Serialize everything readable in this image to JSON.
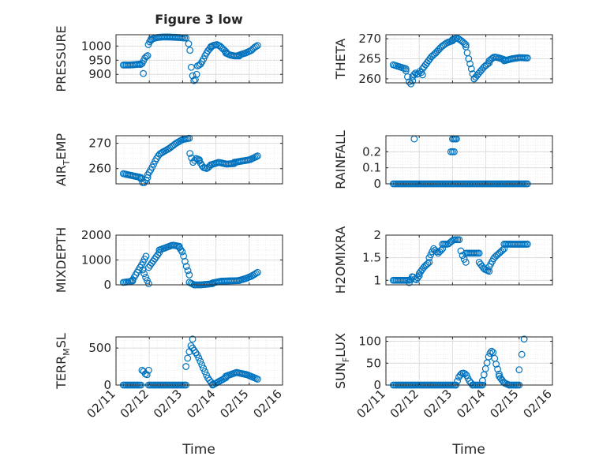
{
  "figure": {
    "title": "Figure 3 low",
    "xlabel": "Time",
    "marker_color": "#0072BD"
  },
  "chart_data": [
    {
      "type": "scatter",
      "ylabel": "PRESSURE",
      "ylabel_parts": [
        {
          "text": "PRESSURE"
        }
      ],
      "xlim": [
        "02/11",
        "02/16"
      ],
      "ylim": [
        870,
        1040
      ],
      "yticks": [
        900,
        950,
        1000
      ],
      "ytick_labels": [
        "900",
        "950",
        "1000"
      ],
      "xtick_labels": [
        "02/11",
        "02/12",
        "02/13",
        "02/14",
        "02/15",
        "02/16"
      ],
      "show_xtick_labels": false,
      "grid": true,
      "segments": [
        {
          "from": 11.22,
          "to": 11.7,
          "values": [
            933,
            933,
            934,
            936
          ]
        },
        {
          "from": 11.7,
          "to": 11.95,
          "values": [
            936,
            935,
            940,
            955,
            962,
            966
          ]
        },
        {
          "from": 11.82,
          "to": 11.82,
          "values": [
            903
          ]
        },
        {
          "from": 11.97,
          "to": 12.05,
          "values": [
            1005,
            1015,
            1020
          ]
        },
        {
          "from": 12.05,
          "to": 13.1,
          "values": [
            1024,
            1030,
            1032,
            1032,
            1031,
            1030,
            1028
          ]
        },
        {
          "from": 13.18,
          "to": 13.22,
          "values": [
            1008,
            985
          ]
        },
        {
          "from": 13.26,
          "to": 13.42,
          "values": [
            925,
            895,
            878,
            882,
            900
          ]
        },
        {
          "from": 13.45,
          "to": 13.85,
          "values": [
            930,
            935,
            950,
            970,
            985,
            995
          ]
        },
        {
          "from": 13.85,
          "to": 14.3,
          "values": [
            998,
            1003,
            1005,
            1000,
            990,
            980
          ]
        },
        {
          "from": 14.3,
          "to": 14.7,
          "values": [
            975,
            968,
            965,
            965
          ]
        },
        {
          "from": 14.7,
          "to": 15.25,
          "values": [
            968,
            972,
            975,
            980,
            985,
            995,
            1002
          ]
        }
      ]
    },
    {
      "type": "scatter",
      "ylabel": "THETA",
      "ylabel_parts": [
        {
          "text": "THETA"
        }
      ],
      "xlim": [
        "02/11",
        "02/16"
      ],
      "ylim": [
        259,
        271
      ],
      "yticks": [
        260,
        265,
        270
      ],
      "ytick_labels": [
        "260",
        "265",
        "270"
      ],
      "xtick_labels": [
        "02/11",
        "02/12",
        "02/13",
        "02/14",
        "02/15",
        "02/16"
      ],
      "show_xtick_labels": false,
      "grid": true,
      "segments": [
        {
          "from": 11.22,
          "to": 11.6,
          "values": [
            263.5,
            263.0,
            262.5
          ]
        },
        {
          "from": 11.6,
          "to": 11.8,
          "values": [
            262.0,
            260.0,
            258.5,
            259.5
          ]
        },
        {
          "from": 11.8,
          "to": 12.1,
          "values": [
            260.5,
            261.5,
            261.0,
            262.0,
            261.0
          ]
        },
        {
          "from": 12.1,
          "to": 12.5,
          "values": [
            262.5,
            264.0,
            265.5,
            266.5
          ]
        },
        {
          "from": 12.5,
          "to": 13.0,
          "values": [
            266.5,
            268.0,
            269.0,
            269.5
          ]
        },
        {
          "from": 13.0,
          "to": 13.4,
          "values": [
            269.8,
            270.2,
            269.5,
            268.5
          ]
        },
        {
          "from": 13.4,
          "to": 13.65,
          "values": [
            268.0,
            265.0,
            262.5,
            260.0
          ]
        },
        {
          "from": 13.65,
          "to": 14.1,
          "values": [
            260.0,
            261.5,
            263.0,
            264.0
          ]
        },
        {
          "from": 14.1,
          "to": 14.55,
          "values": [
            264.5,
            265.5,
            265.2,
            264.8
          ]
        },
        {
          "from": 14.55,
          "to": 15.25,
          "values": [
            264.5,
            265.0,
            265.3,
            265.2
          ]
        }
      ]
    },
    {
      "type": "scatter",
      "ylabel": "AIR_TEMP",
      "ylabel_parts": [
        {
          "text": "AIR"
        },
        {
          "text": "T",
          "sub": true
        },
        {
          "text": "EMP"
        }
      ],
      "xlim": [
        "02/11",
        "02/16"
      ],
      "ylim": [
        254,
        273
      ],
      "yticks": [
        260,
        270
      ],
      "ytick_labels": [
        "260",
        "270"
      ],
      "xtick_labels": [
        "02/11",
        "02/12",
        "02/13",
        "02/14",
        "02/15",
        "02/16"
      ],
      "show_xtick_labels": false,
      "grid": true,
      "segments": [
        {
          "from": 11.22,
          "to": 11.75,
          "values": [
            258.0,
            257.5,
            257.0,
            256.5
          ]
        },
        {
          "from": 11.75,
          "to": 11.95,
          "values": [
            256.0,
            254.5,
            254.5,
            255.5,
            256.5
          ]
        },
        {
          "from": 11.95,
          "to": 12.4,
          "values": [
            257.5,
            260.0,
            263.0,
            265.5,
            266.5
          ]
        },
        {
          "from": 12.4,
          "to": 13.2,
          "values": [
            266.5,
            268.0,
            270.0,
            271.5,
            272.0
          ]
        },
        {
          "from": 13.22,
          "to": 13.5,
          "values": [
            266.0,
            262.5,
            264.0,
            263.5
          ]
        },
        {
          "from": 13.5,
          "to": 13.85,
          "values": [
            263.0,
            260.5,
            260.0,
            261.5
          ]
        },
        {
          "from": 13.85,
          "to": 14.55,
          "values": [
            261.5,
            262.5,
            261.8,
            262.0
          ]
        },
        {
          "from": 14.55,
          "to": 15.25,
          "values": [
            262.5,
            263.0,
            263.5,
            265.0
          ]
        }
      ]
    },
    {
      "type": "scatter",
      "ylabel": "RAINFALL",
      "ylabel_parts": [
        {
          "text": "RAINFALL"
        }
      ],
      "xlim": [
        "02/11",
        "02/16"
      ],
      "ylim": [
        0,
        0.3
      ],
      "yticks": [
        0,
        0.1,
        0.2
      ],
      "ytick_labels": [
        "0",
        "0.1",
        "0.2"
      ],
      "xtick_labels": [
        "02/11",
        "02/12",
        "02/13",
        "02/14",
        "02/15",
        "02/16"
      ],
      "show_xtick_labels": false,
      "grid": true,
      "segments": [
        {
          "from": 11.22,
          "to": 15.25,
          "values": [
            0,
            0
          ]
        },
        {
          "from": 11.85,
          "to": 11.85,
          "values": [
            0.28
          ]
        },
        {
          "from": 12.95,
          "to": 13.05,
          "values": [
            0.2,
            0.2
          ]
        },
        {
          "from": 13.0,
          "to": 13.12,
          "values": [
            0.28,
            0.28,
            0.28
          ]
        }
      ]
    },
    {
      "type": "scatter",
      "ylabel": "MIXDEPTH",
      "ylabel_parts": [
        {
          "text": "MIXDEPTH"
        }
      ],
      "xlim": [
        "02/11",
        "02/16"
      ],
      "ylim": [
        0,
        2000
      ],
      "yticks": [
        0,
        1000,
        2000
      ],
      "ytick_labels": [
        "0",
        "1000",
        "2000"
      ],
      "xtick_labels": [
        "02/11",
        "02/12",
        "02/13",
        "02/14",
        "02/15",
        "02/16"
      ],
      "show_xtick_labels": false,
      "grid": true,
      "segments": [
        {
          "from": 11.22,
          "to": 11.5,
          "values": [
            100,
            120,
            160
          ]
        },
        {
          "from": 11.5,
          "to": 11.9,
          "values": [
            200,
            500,
            800,
            1150
          ]
        },
        {
          "from": 11.8,
          "to": 11.98,
          "values": [
            600,
            300,
            50
          ]
        },
        {
          "from": 11.98,
          "to": 12.3,
          "values": [
            700,
            1000,
            1300
          ]
        },
        {
          "from": 12.3,
          "to": 12.9,
          "values": [
            1400,
            1500,
            1600,
            1550
          ]
        },
        {
          "from": 12.9,
          "to": 13.2,
          "values": [
            1500,
            1300,
            800,
            400
          ]
        },
        {
          "from": 13.2,
          "to": 13.35,
          "values": [
            100,
            0
          ]
        },
        {
          "from": 13.35,
          "to": 13.9,
          "values": [
            0,
            0,
            20,
            50
          ]
        },
        {
          "from": 13.9,
          "to": 14.7,
          "values": [
            80,
            150,
            160,
            170
          ]
        },
        {
          "from": 14.7,
          "to": 15.25,
          "values": [
            180,
            250,
            350,
            500
          ]
        }
      ]
    },
    {
      "type": "scatter",
      "ylabel": "H2OMIXRA",
      "ylabel_parts": [
        {
          "text": "H2OMIXRA"
        }
      ],
      "xlim": [
        "02/11",
        "02/16"
      ],
      "ylim": [
        0.9,
        2.0
      ],
      "yticks": [
        1.0,
        1.5,
        2.0
      ],
      "ytick_labels": [
        "1",
        "1.5",
        "2"
      ],
      "xtick_labels": [
        "02/11",
        "02/12",
        "02/13",
        "02/14",
        "02/15",
        "02/16"
      ],
      "show_xtick_labels": false,
      "grid": true,
      "segments": [
        {
          "from": 11.22,
          "to": 11.7,
          "values": [
            1.0,
            1.0,
            1.0
          ]
        },
        {
          "from": 11.7,
          "to": 12.0,
          "values": [
            0.95,
            1.1,
            1.0,
            1.1
          ]
        },
        {
          "from": 12.0,
          "to": 12.3,
          "values": [
            1.15,
            1.3,
            1.4
          ]
        },
        {
          "from": 12.3,
          "to": 12.7,
          "values": [
            1.5,
            1.7,
            1.6,
            1.7
          ]
        },
        {
          "from": 12.7,
          "to": 13.2,
          "values": [
            1.8,
            1.8,
            1.9,
            1.9
          ]
        },
        {
          "from": 13.25,
          "to": 13.4,
          "values": [
            1.65,
            1.5,
            1.4
          ]
        },
        {
          "from": 13.4,
          "to": 13.8,
          "values": [
            1.6,
            1.6,
            1.6
          ]
        },
        {
          "from": 13.8,
          "to": 14.1,
          "values": [
            1.4,
            1.25,
            1.2
          ]
        },
        {
          "from": 14.1,
          "to": 14.55,
          "values": [
            1.3,
            1.5,
            1.6,
            1.7
          ]
        },
        {
          "from": 14.55,
          "to": 15.25,
          "values": [
            1.8,
            1.8,
            1.8
          ]
        }
      ]
    },
    {
      "type": "scatter",
      "ylabel": "TERR_MSL",
      "ylabel_parts": [
        {
          "text": "TERR"
        },
        {
          "text": "M",
          "sub": true
        },
        {
          "text": "SL"
        }
      ],
      "xlim": [
        "02/11",
        "02/16"
      ],
      "ylim": [
        0,
        650
      ],
      "yticks": [
        0,
        500
      ],
      "ytick_labels": [
        "0",
        "500"
      ],
      "xtick_labels": [
        "02/11",
        "02/12",
        "02/13",
        "02/14",
        "02/15",
        "02/16"
      ],
      "show_xtick_labels": true,
      "grid": true,
      "segments": [
        {
          "from": 11.22,
          "to": 11.75,
          "values": [
            0,
            0
          ]
        },
        {
          "from": 11.78,
          "to": 11.98,
          "values": [
            200,
            180,
            120,
            200
          ]
        },
        {
          "from": 11.98,
          "to": 13.1,
          "values": [
            0,
            0
          ]
        },
        {
          "from": 13.1,
          "to": 13.3,
          "values": [
            250,
            400,
            500,
            620
          ]
        },
        {
          "from": 13.3,
          "to": 13.9,
          "values": [
            500,
            400,
            250,
            100,
            10
          ]
        },
        {
          "from": 13.9,
          "to": 14.3,
          "values": [
            0,
            50,
            100
          ]
        },
        {
          "from": 14.3,
          "to": 15.25,
          "values": [
            120,
            170,
            140,
            80
          ]
        }
      ]
    },
    {
      "type": "scatter",
      "ylabel": "SUN_FLUX",
      "ylabel_parts": [
        {
          "text": "SUN"
        },
        {
          "text": "F",
          "sub": true
        },
        {
          "text": "LUX"
        }
      ],
      "xlim": [
        "02/11",
        "02/16"
      ],
      "ylim": [
        0,
        110
      ],
      "yticks": [
        0,
        50,
        100
      ],
      "ytick_labels": [
        "0",
        "50",
        "100"
      ],
      "xtick_labels": [
        "02/11",
        "02/12",
        "02/13",
        "02/14",
        "02/15",
        "02/16"
      ],
      "show_xtick_labels": true,
      "grid": true,
      "segments": [
        {
          "from": 11.22,
          "to": 13.1,
          "values": [
            0,
            0
          ]
        },
        {
          "from": 13.1,
          "to": 13.6,
          "values": [
            0,
            20,
            28,
            25,
            10,
            0
          ]
        },
        {
          "from": 13.6,
          "to": 13.9,
          "values": [
            0,
            0
          ]
        },
        {
          "from": 13.9,
          "to": 14.4,
          "values": [
            10,
            40,
            70,
            80,
            50,
            25
          ]
        },
        {
          "from": 14.4,
          "to": 14.7,
          "values": [
            20,
            5,
            0
          ]
        },
        {
          "from": 14.7,
          "to": 15.0,
          "values": [
            0,
            0
          ]
        },
        {
          "from": 15.0,
          "to": 15.0,
          "values": [
            35
          ]
        },
        {
          "from": 15.08,
          "to": 15.08,
          "values": [
            70
          ]
        },
        {
          "from": 15.15,
          "to": 15.15,
          "values": [
            105
          ]
        }
      ]
    }
  ]
}
